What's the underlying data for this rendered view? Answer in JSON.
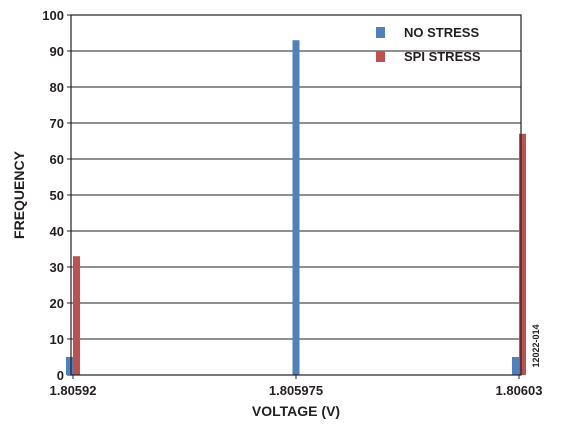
{
  "chart_data": {
    "type": "bar",
    "xlabel": "VOLTAGE (V)",
    "ylabel": "FREQUENCY",
    "ylim": [
      0,
      100
    ],
    "yticks": [
      0,
      10,
      20,
      30,
      40,
      50,
      60,
      70,
      80,
      90,
      100
    ],
    "grid": "horizontal",
    "legend_position": "top-right",
    "x": [
      "1.80592",
      "1.805975",
      "1.80603"
    ],
    "series": [
      {
        "name": "NO STRESS",
        "color": "#4f81bd",
        "values": [
          5,
          93,
          5
        ]
      },
      {
        "name": "SPI STRESS",
        "color": "#c0504d",
        "values": [
          33,
          0,
          67
        ]
      }
    ],
    "annotation": "12022-014"
  }
}
